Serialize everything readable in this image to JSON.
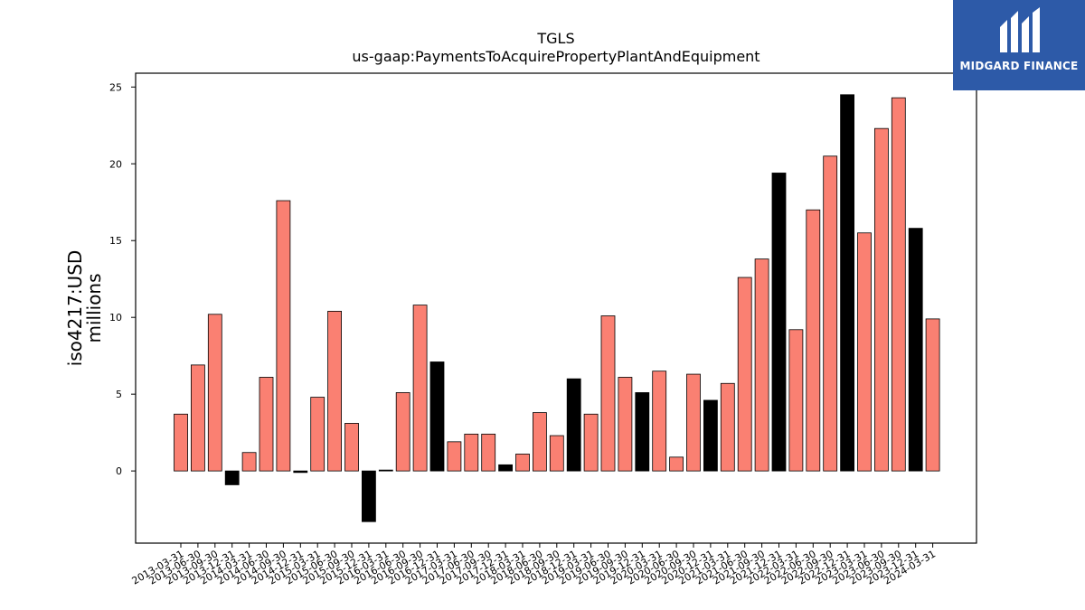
{
  "logo": {
    "text": "MIDGARD FINANCE",
    "bg_color": "#2d5aa8",
    "icon": "midgard-mh-icon"
  },
  "chart_data": {
    "type": "bar",
    "title": "TGLS",
    "subtitle": "us-gaap:PaymentsToAcquirePropertyPlantAndEquipment",
    "ylabel": "iso4217:USD\nmillions",
    "xlabel": "",
    "ylim": [
      -4.7,
      25.9
    ],
    "yticks": [
      0,
      5,
      10,
      15,
      20,
      25
    ],
    "grid": false,
    "colors": {
      "default": "#fa8072",
      "highlight": "#000000"
    },
    "categories": [
      "2013-03-31",
      "2013-06-30",
      "2013-09-30",
      "2013-12-31",
      "2014-03-31",
      "2014-06-30",
      "2014-09-30",
      "2014-12-31",
      "2015-03-31",
      "2015-06-30",
      "2015-09-30",
      "2015-12-31",
      "2016-03-31",
      "2016-06-30",
      "2016-09-30",
      "2016-12-31",
      "2017-03-31",
      "2017-06-30",
      "2017-09-30",
      "2017-12-31",
      "2018-03-31",
      "2018-06-30",
      "2018-09-30",
      "2018-12-31",
      "2019-03-31",
      "2019-06-30",
      "2019-09-30",
      "2019-12-31",
      "2020-03-31",
      "2020-06-30",
      "2020-09-30",
      "2020-12-31",
      "2021-03-31",
      "2021-06-30",
      "2021-09-30",
      "2021-12-31",
      "2022-03-31",
      "2022-06-30",
      "2022-09-30",
      "2022-12-31",
      "2023-03-31",
      "2023-06-30",
      "2023-09-30",
      "2023-12-31",
      "2024-03-31"
    ],
    "values": [
      3.7,
      6.9,
      10.2,
      -0.9,
      1.2,
      6.1,
      17.6,
      -0.1,
      4.8,
      10.4,
      3.1,
      -3.3,
      0.0,
      5.1,
      10.8,
      7.1,
      1.9,
      2.4,
      2.4,
      0.4,
      1.1,
      3.8,
      2.3,
      6.0,
      3.7,
      10.1,
      6.1,
      5.1,
      6.5,
      0.9,
      6.3,
      4.6,
      5.7,
      12.6,
      13.8,
      19.4,
      9.2,
      17.0,
      20.5,
      24.5,
      15.5,
      22.3,
      24.3,
      15.8,
      9.9
    ],
    "highlight": [
      false,
      false,
      false,
      true,
      false,
      false,
      false,
      true,
      false,
      false,
      false,
      true,
      true,
      false,
      false,
      true,
      false,
      false,
      false,
      true,
      false,
      false,
      false,
      true,
      false,
      false,
      false,
      true,
      false,
      false,
      false,
      true,
      false,
      false,
      false,
      true,
      false,
      false,
      false,
      true,
      false,
      false,
      false,
      true,
      false
    ]
  }
}
